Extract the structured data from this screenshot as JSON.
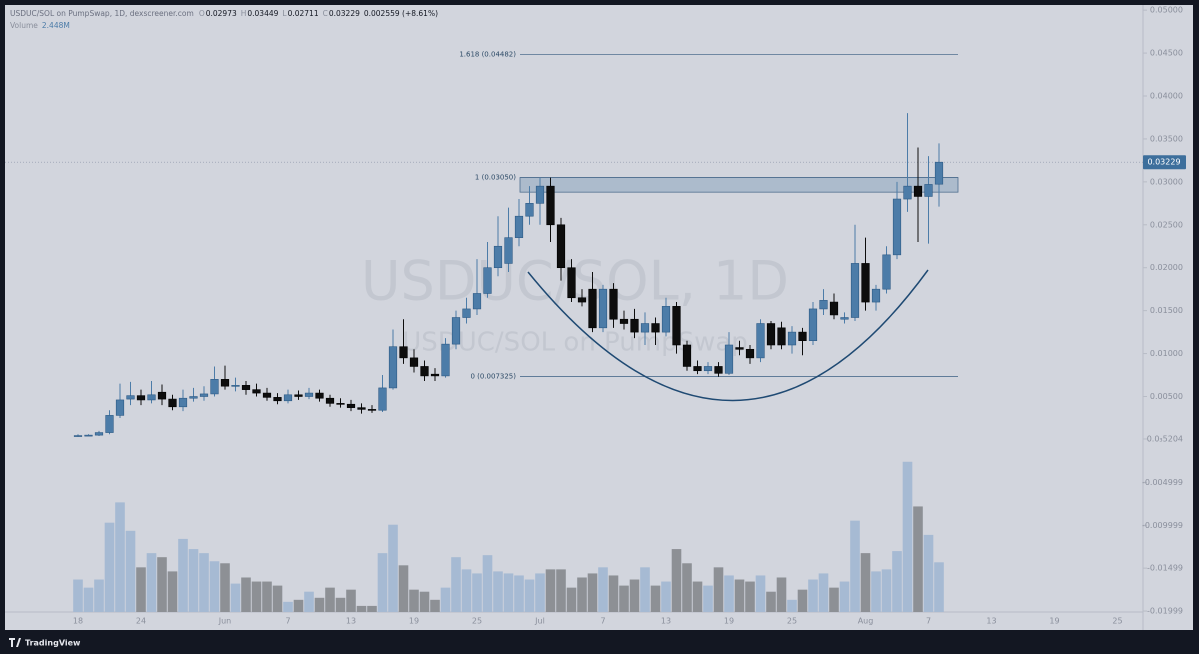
{
  "chart_data": {
    "type": "candlestick",
    "title": "USDUC/SOL on PumpSwap, 1D, dexscreener.com",
    "ohlc_letters": [
      "O",
      "H",
      "L",
      "C"
    ],
    "last_bar_labels": {
      "open": "0.02973",
      "high": "0.03449",
      "low": "0.02711",
      "close": "0.03229",
      "change": "0.002559 (+8.61%)"
    },
    "watermark": [
      "USDUC/SOL, 1D",
      "USDUC/SOL on PumpSwap"
    ],
    "footer": "TradingView",
    "up_color": "#4c7ca8",
    "down_color": "#0d0d0d",
    "volume_up_color": "#a6bad3",
    "volume_down_color": "#8d9095",
    "categories": [
      "May 18",
      "May 19",
      "May 20",
      "May 21",
      "May 22",
      "May 23",
      "May 24",
      "May 25",
      "May 26",
      "May 27",
      "May 28",
      "May 29",
      "May 30",
      "May 31",
      "Jun 1",
      "Jun 2",
      "Jun 3",
      "Jun 4",
      "Jun 5",
      "Jun 6",
      "Jun 7",
      "Jun 8",
      "Jun 9",
      "Jun 10",
      "Jun 11",
      "Jun 12",
      "Jun 13",
      "Jun 14",
      "Jun 15",
      "Jun 16",
      "Jun 17",
      "Jun 18",
      "Jun 19",
      "Jun 20",
      "Jun 21",
      "Jun 22",
      "Jun 23",
      "Jun 24",
      "Jun 25",
      "Jun 26",
      "Jun 27",
      "Jun 28",
      "Jun 29",
      "Jun 30",
      "Jul 1",
      "Jul 2",
      "Jul 3",
      "Jul 4",
      "Jul 5",
      "Jul 6",
      "Jul 7",
      "Jul 8",
      "Jul 9",
      "Jul 10",
      "Jul 11",
      "Jul 12",
      "Jul 13",
      "Jul 14",
      "Jul 15",
      "Jul 16",
      "Jul 17",
      "Jul 18",
      "Jul 19",
      "Jul 20",
      "Jul 21",
      "Jul 22",
      "Jul 23",
      "Jul 24",
      "Jul 25",
      "Jul 26",
      "Jul 27",
      "Jul 28",
      "Jul 29",
      "Jul 30",
      "Jul 31",
      "Aug 1",
      "Aug 2",
      "Aug 3",
      "Aug 4",
      "Aug 5",
      "Aug 6",
      "Aug 7",
      "Aug 8"
    ],
    "open": [
      0.0004,
      0.00045,
      0.0005,
      0.0008,
      0.0028,
      0.0047,
      0.0051,
      0.0046,
      0.0055,
      0.0047,
      0.0038,
      0.0048,
      0.005,
      0.0053,
      0.007,
      0.0062,
      0.0063,
      0.0058,
      0.0054,
      0.0049,
      0.0045,
      0.0052,
      0.005,
      0.0054,
      0.0048,
      0.0042,
      0.0041,
      0.0037,
      0.0035,
      0.0034,
      0.006,
      0.0108,
      0.0095,
      0.0085,
      0.0076,
      0.0074,
      0.0111,
      0.0142,
      0.0152,
      0.017,
      0.02,
      0.0205,
      0.0235,
      0.026,
      0.0275,
      0.0295,
      0.025,
      0.02,
      0.0165,
      0.0175,
      0.013,
      0.0175,
      0.014,
      0.014,
      0.0125,
      0.0135,
      0.0125,
      0.0155,
      0.011,
      0.0085,
      0.008,
      0.0085,
      0.0077,
      0.0107,
      0.0105,
      0.0095,
      0.0135,
      0.013,
      0.011,
      0.0125,
      0.0115,
      0.0152,
      0.016,
      0.014,
      0.0142,
      0.0205,
      0.016,
      0.0175,
      0.0215,
      0.028,
      0.0295,
      0.0283,
      0.02973
    ],
    "high": [
      0.0006,
      0.0006,
      0.001,
      0.0034,
      0.0065,
      0.0067,
      0.0058,
      0.0068,
      0.0064,
      0.0052,
      0.0058,
      0.006,
      0.0062,
      0.0085,
      0.0086,
      0.0072,
      0.0068,
      0.0065,
      0.006,
      0.0054,
      0.0058,
      0.0057,
      0.006,
      0.0058,
      0.0052,
      0.0048,
      0.0046,
      0.0042,
      0.004,
      0.0075,
      0.0128,
      0.014,
      0.0105,
      0.0092,
      0.0083,
      0.0118,
      0.015,
      0.0165,
      0.021,
      0.023,
      0.026,
      0.027,
      0.028,
      0.0295,
      0.0305,
      0.0305,
      0.0258,
      0.021,
      0.0175,
      0.0195,
      0.018,
      0.0182,
      0.015,
      0.0152,
      0.0148,
      0.0142,
      0.0165,
      0.016,
      0.0115,
      0.0092,
      0.009,
      0.009,
      0.0125,
      0.0115,
      0.011,
      0.014,
      0.0138,
      0.0137,
      0.0132,
      0.013,
      0.016,
      0.0175,
      0.017,
      0.0148,
      0.025,
      0.0235,
      0.018,
      0.0225,
      0.03,
      0.038,
      0.034,
      0.033,
      0.03449
    ],
    "low": [
      0.0003,
      0.0004,
      0.0004,
      0.0006,
      0.0025,
      0.004,
      0.004,
      0.0042,
      0.004,
      0.0034,
      0.0033,
      0.0044,
      0.0045,
      0.005,
      0.0058,
      0.0056,
      0.0052,
      0.005,
      0.0045,
      0.0041,
      0.0042,
      0.0046,
      0.0047,
      0.0044,
      0.0038,
      0.0037,
      0.0033,
      0.003,
      0.0031,
      0.0032,
      0.0058,
      0.0088,
      0.0078,
      0.0068,
      0.0068,
      0.0072,
      0.0105,
      0.0135,
      0.0145,
      0.0165,
      0.019,
      0.0195,
      0.0225,
      0.025,
      0.025,
      0.023,
      0.0185,
      0.016,
      0.0155,
      0.0125,
      0.0125,
      0.013,
      0.0128,
      0.0118,
      0.011,
      0.011,
      0.012,
      0.01,
      0.008,
      0.0076,
      0.0076,
      0.0073,
      0.0075,
      0.0098,
      0.0088,
      0.009,
      0.0105,
      0.0105,
      0.01,
      0.0098,
      0.011,
      0.0145,
      0.014,
      0.0135,
      0.0138,
      0.015,
      0.015,
      0.017,
      0.021,
      0.0265,
      0.023,
      0.0228,
      0.02711
    ],
    "close": [
      0.00045,
      0.0005,
      0.0008,
      0.0028,
      0.0046,
      0.0051,
      0.0046,
      0.0052,
      0.0047,
      0.0038,
      0.0048,
      0.005,
      0.0053,
      0.007,
      0.0062,
      0.0063,
      0.0058,
      0.0054,
      0.0049,
      0.0045,
      0.0052,
      0.005,
      0.0054,
      0.0048,
      0.0042,
      0.0041,
      0.0037,
      0.0035,
      0.0034,
      0.006,
      0.0108,
      0.0095,
      0.0085,
      0.0074,
      0.0074,
      0.0111,
      0.0142,
      0.0152,
      0.017,
      0.02,
      0.0225,
      0.0235,
      0.026,
      0.0275,
      0.0295,
      0.025,
      0.02,
      0.0165,
      0.016,
      0.013,
      0.0175,
      0.014,
      0.0135,
      0.0125,
      0.0135,
      0.0125,
      0.0155,
      0.011,
      0.0085,
      0.008,
      0.0085,
      0.0077,
      0.011,
      0.0105,
      0.0095,
      0.0135,
      0.011,
      0.011,
      0.0125,
      0.0115,
      0.0152,
      0.0162,
      0.0145,
      0.0142,
      0.0205,
      0.016,
      0.0175,
      0.0215,
      0.028,
      0.0295,
      0.0283,
      0.0297,
      0.03229
    ],
    "volume": {
      "name": "Volume",
      "label": "2.448M",
      "values": [
        1.6,
        1.2,
        1.6,
        4.4,
        5.4,
        4.0,
        2.2,
        2.9,
        2.7,
        2.0,
        3.6,
        3.1,
        2.9,
        2.5,
        2.4,
        1.4,
        1.7,
        1.5,
        1.5,
        1.3,
        0.5,
        0.6,
        1.0,
        0.7,
        1.2,
        0.7,
        1.1,
        0.3,
        0.3,
        2.9,
        4.3,
        2.3,
        1.1,
        1.0,
        0.6,
        1.2,
        2.7,
        2.1,
        1.9,
        2.8,
        2.0,
        1.9,
        1.8,
        1.6,
        1.9,
        2.1,
        2.1,
        1.2,
        1.7,
        1.9,
        2.2,
        1.8,
        1.3,
        1.6,
        2.2,
        1.3,
        1.5,
        3.1,
        2.4,
        1.5,
        1.3,
        2.2,
        1.8,
        1.6,
        1.5,
        1.8,
        1.0,
        1.7,
        0.6,
        1.1,
        1.6,
        1.9,
        1.2,
        1.5,
        4.5,
        2.9,
        2.0,
        2.1,
        3.0,
        7.4,
        5.2,
        3.8,
        2.448
      ]
    },
    "ylim": [
      -0.0201,
      0.0506
    ],
    "yticks": [
      {
        "value": 0.05,
        "label": "0.05000"
      },
      {
        "value": 0.045,
        "label": "0.04500"
      },
      {
        "value": 0.04,
        "label": "0.04000"
      },
      {
        "value": 0.035,
        "label": "0.03500"
      },
      {
        "value": 0.03,
        "label": "0.03000"
      },
      {
        "value": 0.025,
        "label": "0.02500"
      },
      {
        "value": 0.02,
        "label": "0.02000"
      },
      {
        "value": 0.015,
        "label": "0.01500"
      },
      {
        "value": 0.01,
        "label": "0.01000"
      },
      {
        "value": 0.005,
        "label": "0.00500"
      },
      {
        "value": 5.204e-05,
        "label": "0.0₃5204"
      },
      {
        "value": -0.004999,
        "label": "-0.004999"
      },
      {
        "value": -0.009999,
        "label": "-0.009999"
      },
      {
        "value": -0.01499,
        "label": "-0.01499"
      },
      {
        "value": -0.01999,
        "label": "-0.01999"
      }
    ],
    "xticks": [
      {
        "value": "May 18",
        "label": "18"
      },
      {
        "value": "May 24",
        "label": "24"
      },
      {
        "value": "Jun 1",
        "label": "Jun"
      },
      {
        "value": "Jun 7",
        "label": "7"
      },
      {
        "value": "Jun 13",
        "label": "13"
      },
      {
        "value": "Jun 19",
        "label": "19"
      },
      {
        "value": "Jun 25",
        "label": "25"
      },
      {
        "value": "Jul 1",
        "label": "Jul"
      },
      {
        "value": "Jul 7",
        "label": "7"
      },
      {
        "value": "Jul 13",
        "label": "13"
      },
      {
        "value": "Jul 19",
        "label": "19"
      },
      {
        "value": "Jul 25",
        "label": "25"
      },
      {
        "value": "Aug 1",
        "label": "Aug"
      },
      {
        "value": "Aug 7",
        "label": "7"
      },
      {
        "value": "Aug 13",
        "label": "13"
      },
      {
        "value": "Aug 19",
        "label": "19"
      },
      {
        "value": "Aug 25",
        "label": "25"
      }
    ],
    "fib_levels": [
      {
        "label": "1.618 (0.04482)",
        "value": 0.04482
      },
      {
        "label": "1 (0.03050)",
        "value": 0.0305
      },
      {
        "label": "0 (0.007325)",
        "value": 0.007325
      }
    ],
    "resistance_zone": [
      0.0288,
      0.0305
    ]
  }
}
